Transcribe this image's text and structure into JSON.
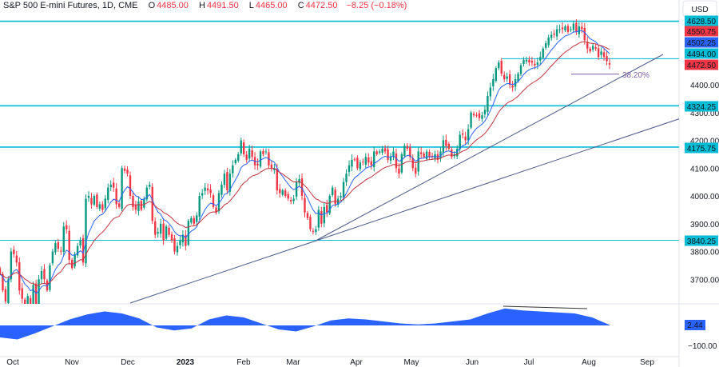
{
  "header": {
    "symbol": "S&P 500 E-mini Futures, 1D, CME",
    "open_label": "O",
    "open": "4485.00",
    "high_label": "H",
    "high": "4491.50",
    "low_label": "L",
    "low": "4465.00",
    "close_label": "C",
    "close": "4472.50",
    "change": "−8.25 (−0.18%)"
  },
  "chart_data": {
    "type": "candlestick",
    "currency": "USD",
    "ylim": [
      3610,
      4660
    ],
    "y_ticks": [
      "4400.00",
      "4300.00",
      "4200.00",
      "4100.00",
      "4000.00",
      "3900.00",
      "3800.00",
      "3700.00"
    ],
    "x_ticks": [
      "Oct",
      "Nov",
      "Dec",
      "2023",
      "Feb",
      "Mar",
      "Apr",
      "May",
      "Jun",
      "Jul",
      "Aug",
      "Sep"
    ],
    "closes": [
      3720,
      3660,
      3620,
      3700,
      3800,
      3790,
      3760,
      3660,
      3630,
      3600,
      3640,
      3600,
      3680,
      3590,
      3700,
      3730,
      3700,
      3660,
      3750,
      3800,
      3830,
      3810,
      3800,
      3890,
      3880,
      3770,
      3740,
      3790,
      3820,
      3840,
      3760,
      3990,
      4000,
      3970,
      4000,
      3960,
      3970,
      3950,
      3990,
      4030,
      4040,
      4030,
      3970,
      3960,
      4100,
      4090,
      4080,
      4000,
      3960,
      3950,
      3980,
      3950,
      3990,
      4030,
      4040,
      3910,
      3860,
      3870,
      3900,
      3840,
      3890,
      3860,
      3840,
      3800,
      3820,
      3840,
      3860,
      3820,
      3910,
      3920,
      3900,
      3930,
      4000,
      4010,
      4030,
      4020,
      4010,
      3960,
      3940,
      4010,
      4040,
      4080,
      4020,
      4080,
      4110,
      4130,
      4150,
      4200,
      4150,
      4130,
      4170,
      4140,
      4110,
      4110,
      4160,
      4150,
      4160,
      4110,
      4100,
      4100,
      4020,
      4010,
      4020,
      4000,
      3990,
      3980,
      3990,
      4050,
      4060,
      4000,
      3940,
      3920,
      3880,
      3870,
      3880,
      3950,
      3900,
      3960,
      3940,
      4000,
      4030,
      3970,
      3990,
      4000,
      4050,
      4080,
      4110,
      4130,
      4130,
      4100,
      4120,
      4120,
      4140,
      4120,
      4110,
      4160,
      4150,
      4160,
      4170,
      4160,
      4130,
      4140,
      4160,
      4100,
      4080,
      4150,
      4180,
      4170,
      4140,
      4100,
      4080,
      4160,
      4150,
      4140,
      4160,
      4140,
      4140,
      4150,
      4130,
      4160,
      4200,
      4180,
      4170,
      4140,
      4150,
      4170,
      4220,
      4220,
      4200,
      4240,
      4300,
      4290,
      4290,
      4280,
      4290,
      4310,
      4360,
      4390,
      4420,
      4460,
      4480,
      4440,
      4420,
      4430,
      4400,
      4390,
      4420,
      4440,
      4470,
      4490,
      4490,
      4480,
      4480,
      4470,
      4480,
      4500,
      4530,
      4550,
      4570,
      4580,
      4580,
      4600,
      4600,
      4600,
      4610,
      4590,
      4600,
      4620,
      4590,
      4610,
      4600,
      4560,
      4530,
      4520,
      4540,
      4530,
      4500,
      4520,
      4500,
      4485,
      4472.5
    ],
    "moving_averages": [
      {
        "type": "EMA",
        "period": 9,
        "color": "#2962ff"
      },
      {
        "type": "EMA",
        "period": 21,
        "color": "#c2343f"
      }
    ],
    "horizontal_levels": [
      {
        "value": 4628.5,
        "label": "4628.50",
        "style": "thick"
      },
      {
        "value": 4324.25,
        "label": "4324.25",
        "style": "thick"
      },
      {
        "value": 4175.75,
        "label": "4175.75",
        "style": "thick"
      },
      {
        "value": 3840.25,
        "label": "3840.25",
        "style": "thin"
      },
      {
        "value": 4494.0,
        "label": "4494.00",
        "style": "thin"
      }
    ],
    "price_badges": [
      {
        "label": "4550.75",
        "color": "#f23645"
      },
      {
        "label": "4502.25",
        "color": "#2962ff"
      },
      {
        "label": "4472.50",
        "color": "#f23645"
      }
    ],
    "fib_label": "38.20%",
    "fib_value": 4438,
    "oscillator": {
      "value_label": "2.44",
      "tick": "−100.00",
      "values": [
        -60,
        -70,
        -40,
        -5,
        30,
        55,
        70,
        60,
        35,
        -10,
        -25,
        -15,
        30,
        50,
        40,
        10,
        -20,
        -30,
        -5,
        25,
        35,
        30,
        20,
        10,
        5,
        10,
        20,
        30,
        60,
        85,
        75,
        70,
        65,
        60,
        40,
        2.44
      ]
    },
    "colors": {
      "up": "#089981",
      "down": "#f23645",
      "level": "#00bcd4",
      "trend": "#4a5a8a",
      "osc": "#2962ff"
    }
  }
}
